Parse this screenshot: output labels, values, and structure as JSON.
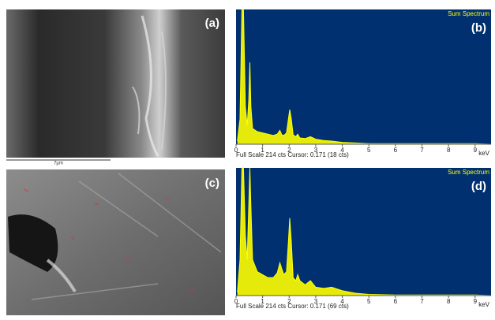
{
  "panels": {
    "a": "(a)",
    "c": "(c)"
  },
  "scale_bar": "7µm",
  "chart_data": [
    {
      "type": "line",
      "title": "Sum Spectrum",
      "label": "(b)",
      "xlabel": "keV",
      "footer": "Full Scale 214 cts Cursor: 0.171  (18 cts)",
      "xlim": [
        0,
        9.6
      ],
      "xticks": [
        0,
        1,
        2,
        3,
        4,
        5,
        6,
        7,
        8,
        9
      ],
      "ylim": [
        0,
        214
      ],
      "color": "#ffff00",
      "background": "#003070",
      "x": [
        0.05,
        0.15,
        0.22,
        0.25,
        0.28,
        0.35,
        0.42,
        0.48,
        0.52,
        0.56,
        0.62,
        0.8,
        1.0,
        1.2,
        1.4,
        1.55,
        1.65,
        1.72,
        1.8,
        1.9,
        1.97,
        2.02,
        2.08,
        2.15,
        2.25,
        2.32,
        2.4,
        2.6,
        2.8,
        3.0,
        3.3,
        3.6,
        4.0,
        4.5,
        5,
        6,
        7,
        8,
        9,
        9.6
      ],
      "values": [
        5,
        40,
        214,
        214,
        214,
        60,
        30,
        70,
        130,
        60,
        25,
        20,
        18,
        16,
        14,
        16,
        22,
        15,
        14,
        18,
        40,
        55,
        40,
        15,
        12,
        16,
        10,
        9,
        12,
        8,
        6,
        5,
        3,
        2,
        1,
        1,
        1,
        1,
        1,
        0
      ]
    },
    {
      "type": "line",
      "title": "Sum Spectrum",
      "label": "(d)",
      "xlabel": "keV",
      "footer": "Full Scale 214 cts Cursor: 0.171  (69 cts)",
      "xlim": [
        0,
        9.6
      ],
      "xticks": [
        0,
        1,
        2,
        3,
        4,
        5,
        6,
        7,
        8,
        9
      ],
      "ylim": [
        0,
        214
      ],
      "color": "#ffff00",
      "background": "#003070",
      "x": [
        0.05,
        0.15,
        0.22,
        0.25,
        0.28,
        0.35,
        0.42,
        0.48,
        0.52,
        0.56,
        0.62,
        0.8,
        1.0,
        1.2,
        1.4,
        1.55,
        1.65,
        1.72,
        1.8,
        1.9,
        1.97,
        2.02,
        2.08,
        2.15,
        2.25,
        2.32,
        2.4,
        2.6,
        2.8,
        3.0,
        3.3,
        3.6,
        4.0,
        4.5,
        5,
        6,
        7,
        8,
        9,
        9.6
      ],
      "values": [
        5,
        60,
        214,
        214,
        214,
        100,
        60,
        150,
        214,
        150,
        60,
        40,
        35,
        30,
        30,
        38,
        55,
        45,
        35,
        40,
        90,
        130,
        90,
        30,
        25,
        35,
        25,
        18,
        25,
        14,
        12,
        14,
        8,
        4,
        2,
        1,
        1,
        1,
        1,
        0
      ]
    }
  ]
}
